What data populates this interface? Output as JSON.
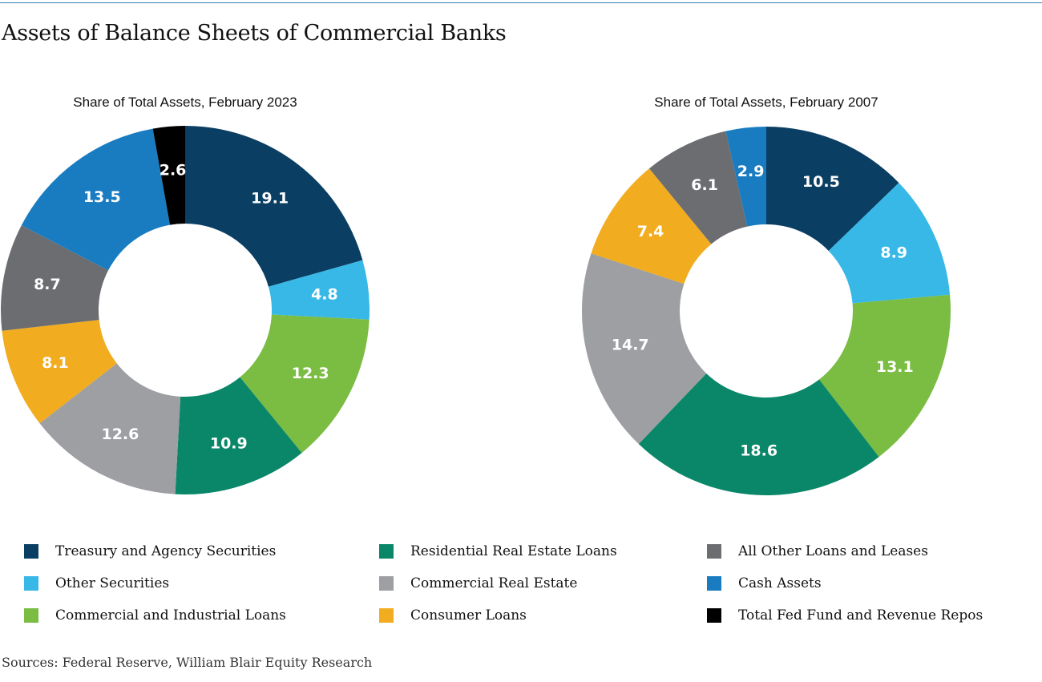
{
  "title": "Assets of Balance Sheets of Commercial Banks",
  "source": "Sources: Federal Reserve, William Blair Equity Research",
  "colors": {
    "Treasury and Agency Securities": "#0b3e63",
    "Other Securities": "#38b8e6",
    "Commercial and Industrial Loans": "#7bbc43",
    "Residential Real Estate Loans": "#0a8769",
    "Commercial Real Estate": "#9d9fa2",
    "Consumer Loans": "#f2ac1f",
    "All Other Loans and Leases": "#6b6d71",
    "Cash Assets": "#197cc1",
    "Total Fed Fund and Revenue Repos": "#000000"
  },
  "legend": [
    "Treasury and Agency Securities",
    "Other Securities",
    "Commercial and Industrial Loans",
    "Residential Real Estate Loans",
    "Commercial Real Estate",
    "Consumer Loans",
    "All Other Loans and Leases",
    "Cash Assets",
    "Total Fed Fund and Revenue Repos"
  ],
  "chart_data": [
    {
      "type": "pie",
      "title": "Share of Total Assets, February 2023",
      "categories": [
        "Treasury and Agency Securities",
        "Other Securities",
        "Commercial and Industrial Loans",
        "Residential Real Estate Loans",
        "Commercial Real Estate",
        "Consumer Loans",
        "All Other Loans and Leases",
        "Cash Assets",
        "Total Fed Fund and Revenue Repos"
      ],
      "values": [
        19.1,
        4.8,
        12.3,
        10.9,
        12.6,
        8.1,
        8.7,
        13.5,
        2.6
      ],
      "labels": [
        "19.1",
        "4.8",
        "12.3",
        "10.9",
        "12.6",
        "8.1",
        "8.7",
        "13.5",
        "2.6"
      ]
    },
    {
      "type": "pie",
      "title": "Share of Total Assets, February 2007",
      "categories": [
        "Treasury and Agency Securities",
        "Other Securities",
        "Commercial and Industrial Loans",
        "Residential Real Estate Loans",
        "Commercial Real Estate",
        "Consumer Loans",
        "All Other Loans and Leases",
        "Cash Assets"
      ],
      "values": [
        10.5,
        8.9,
        13.1,
        18.6,
        14.7,
        7.4,
        6.1,
        2.9
      ],
      "labels": [
        "10.5",
        "8.9",
        "13.1",
        "18.6",
        "14.7",
        "7.4",
        "6.1",
        "2.9"
      ]
    }
  ]
}
